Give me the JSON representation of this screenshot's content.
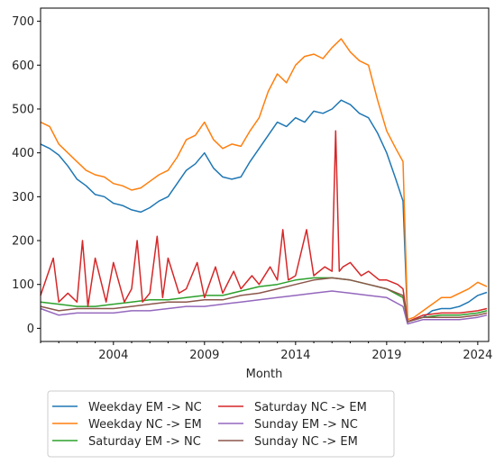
{
  "chart_data": {
    "type": "line",
    "title": "",
    "xlabel": "Month",
    "ylabel": "",
    "xlim": [
      2000.0,
      2024.6
    ],
    "ylim": [
      -30,
      730
    ],
    "x_ticks": [
      2004,
      2009,
      2014,
      2019,
      2024
    ],
    "y_ticks": [
      0,
      100,
      200,
      300,
      400,
      500,
      600,
      700
    ],
    "grid": false,
    "legend_position": "below chart, 2 columns",
    "series": [
      {
        "name": "Weekday EM -> NC",
        "color": "#1f77b4",
        "x": [
          2000.0,
          2000.5,
          2001.0,
          2001.5,
          2002.0,
          2002.5,
          2003.0,
          2003.5,
          2004.0,
          2004.5,
          2005.0,
          2005.5,
          2006.0,
          2006.5,
          2007.0,
          2007.5,
          2008.0,
          2008.5,
          2009.0,
          2009.5,
          2010.0,
          2010.5,
          2011.0,
          2011.5,
          2012.0,
          2012.5,
          2013.0,
          2013.5,
          2014.0,
          2014.5,
          2015.0,
          2015.5,
          2016.0,
          2016.5,
          2017.0,
          2017.5,
          2018.0,
          2018.5,
          2019.0,
          2019.5,
          2019.9,
          2020.15,
          2020.5,
          2021.0,
          2021.5,
          2022.0,
          2022.5,
          2023.0,
          2023.5,
          2024.0,
          2024.5
        ],
        "y": [
          420,
          410,
          395,
          370,
          340,
          325,
          305,
          300,
          285,
          280,
          270,
          265,
          275,
          290,
          300,
          330,
          360,
          375,
          400,
          365,
          345,
          340,
          345,
          380,
          410,
          440,
          470,
          460,
          480,
          470,
          495,
          490,
          500,
          520,
          510,
          490,
          480,
          445,
          400,
          340,
          290,
          15,
          20,
          25,
          40,
          45,
          45,
          50,
          60,
          75,
          82
        ]
      },
      {
        "name": "Weekday NC -> EM",
        "color": "#ff7f0e",
        "x": [
          2000.0,
          2000.5,
          2001.0,
          2001.5,
          2002.0,
          2002.5,
          2003.0,
          2003.5,
          2004.0,
          2004.5,
          2005.0,
          2005.5,
          2006.0,
          2006.5,
          2007.0,
          2007.5,
          2008.0,
          2008.5,
          2009.0,
          2009.5,
          2010.0,
          2010.5,
          2011.0,
          2011.5,
          2012.0,
          2012.5,
          2013.0,
          2013.5,
          2014.0,
          2014.5,
          2015.0,
          2015.5,
          2016.0,
          2016.5,
          2017.0,
          2017.5,
          2018.0,
          2018.5,
          2019.0,
          2019.5,
          2019.9,
          2020.15,
          2020.5,
          2021.0,
          2021.5,
          2022.0,
          2022.5,
          2023.0,
          2023.5,
          2024.0,
          2024.5
        ],
        "y": [
          470,
          460,
          420,
          400,
          380,
          360,
          350,
          345,
          330,
          325,
          315,
          320,
          335,
          350,
          360,
          390,
          430,
          440,
          470,
          430,
          410,
          420,
          415,
          450,
          480,
          540,
          580,
          560,
          600,
          620,
          625,
          615,
          640,
          660,
          630,
          610,
          600,
          520,
          450,
          410,
          380,
          20,
          25,
          40,
          55,
          70,
          70,
          80,
          90,
          105,
          95
        ]
      },
      {
        "name": "Saturday EM -> NC",
        "color": "#2ca02c",
        "x": [
          2000.0,
          2001.0,
          2002.0,
          2003.0,
          2004.0,
          2005.0,
          2006.0,
          2007.0,
          2008.0,
          2009.0,
          2010.0,
          2011.0,
          2012.0,
          2013.0,
          2014.0,
          2015.0,
          2016.0,
          2017.0,
          2018.0,
          2019.0,
          2019.9,
          2020.15,
          2021.0,
          2022.0,
          2023.0,
          2024.0,
          2024.5
        ],
        "y": [
          60,
          55,
          50,
          50,
          55,
          60,
          65,
          65,
          70,
          75,
          75,
          85,
          95,
          100,
          110,
          115,
          115,
          110,
          100,
          90,
          70,
          15,
          25,
          30,
          30,
          35,
          40
        ]
      },
      {
        "name": "Saturday NC -> EM",
        "color": "#d62728",
        "x": [
          2000.0,
          2000.7,
          2001.0,
          2001.5,
          2002.0,
          2002.3,
          2002.6,
          2003.0,
          2003.6,
          2004.0,
          2004.6,
          2005.0,
          2005.3,
          2005.6,
          2006.0,
          2006.4,
          2006.7,
          2007.0,
          2007.6,
          2008.0,
          2008.6,
          2009.0,
          2009.6,
          2010.0,
          2010.6,
          2011.0,
          2011.6,
          2012.0,
          2012.6,
          2013.0,
          2013.3,
          2013.6,
          2014.0,
          2014.6,
          2015.0,
          2015.6,
          2016.0,
          2016.2,
          2016.4,
          2016.6,
          2017.0,
          2017.6,
          2018.0,
          2018.6,
          2019.0,
          2019.6,
          2019.9,
          2020.15,
          2021.0,
          2022.0,
          2023.0,
          2024.0,
          2024.5
        ],
        "y": [
          75,
          160,
          60,
          80,
          60,
          200,
          50,
          160,
          60,
          150,
          60,
          90,
          200,
          60,
          80,
          210,
          70,
          160,
          80,
          90,
          150,
          70,
          140,
          80,
          130,
          90,
          120,
          100,
          140,
          110,
          225,
          110,
          120,
          225,
          120,
          140,
          130,
          450,
          130,
          140,
          150,
          120,
          130,
          110,
          110,
          100,
          90,
          15,
          30,
          35,
          35,
          40,
          45
        ]
      },
      {
        "name": "Sunday EM -> NC",
        "color": "#9467bd",
        "x": [
          2000.0,
          2001.0,
          2002.0,
          2003.0,
          2004.0,
          2005.0,
          2006.0,
          2007.0,
          2008.0,
          2009.0,
          2010.0,
          2011.0,
          2012.0,
          2013.0,
          2014.0,
          2015.0,
          2016.0,
          2017.0,
          2018.0,
          2019.0,
          2019.9,
          2020.15,
          2021.0,
          2022.0,
          2023.0,
          2024.0,
          2024.5
        ],
        "y": [
          45,
          30,
          35,
          35,
          35,
          40,
          40,
          45,
          50,
          50,
          55,
          60,
          65,
          70,
          75,
          80,
          85,
          80,
          75,
          70,
          50,
          10,
          20,
          20,
          20,
          25,
          30
        ]
      },
      {
        "name": "Sunday NC -> EM",
        "color": "#8c564b",
        "x": [
          2000.0,
          2001.0,
          2002.0,
          2003.0,
          2004.0,
          2005.0,
          2006.0,
          2007.0,
          2008.0,
          2009.0,
          2010.0,
          2011.0,
          2012.0,
          2013.0,
          2014.0,
          2015.0,
          2016.0,
          2017.0,
          2018.0,
          2019.0,
          2019.9,
          2020.15,
          2021.0,
          2022.0,
          2023.0,
          2024.0,
          2024.5
        ],
        "y": [
          50,
          40,
          45,
          45,
          45,
          50,
          55,
          60,
          60,
          65,
          65,
          75,
          80,
          90,
          100,
          110,
          115,
          110,
          100,
          90,
          75,
          15,
          25,
          25,
          25,
          30,
          35
        ]
      }
    ]
  }
}
